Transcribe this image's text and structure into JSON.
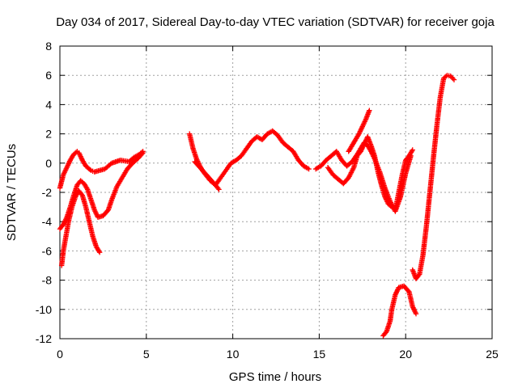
{
  "chart_data": {
    "type": "scatter",
    "title": "Day 034 of 2017, Sidereal Day-to-day VTEC variation (SDTVAR) for receiver goja",
    "xlabel": "GPS time / hours",
    "ylabel": "SDTVAR / TECUs",
    "xlim": [
      0,
      25
    ],
    "ylim": [
      -12,
      8
    ],
    "xticks": [
      0,
      5,
      10,
      15,
      20,
      25
    ],
    "yticks": [
      -12,
      -10,
      -8,
      -6,
      -4,
      -2,
      0,
      2,
      4,
      6,
      8
    ],
    "grid": true,
    "marker": "plus",
    "color": "#ff0000",
    "series": [
      {
        "x": [
          0.0,
          0.2,
          0.4,
          0.6,
          0.8,
          1.0,
          1.1,
          1.3,
          1.5,
          1.8,
          2.0,
          2.3,
          2.6,
          3.0,
          3.5,
          4.0,
          4.3,
          4.6,
          4.8
        ],
        "y": [
          -1.7,
          -0.8,
          -0.3,
          0.2,
          0.6,
          0.8,
          0.7,
          0.2,
          -0.2,
          -0.5,
          -0.6,
          -0.5,
          -0.4,
          0.0,
          0.2,
          0.1,
          0.4,
          0.6,
          0.8
        ]
      },
      {
        "x": [
          0.0,
          0.2,
          0.4,
          0.6,
          0.8,
          1.0,
          1.2,
          1.4,
          1.6,
          1.8,
          2.0,
          2.2,
          2.5,
          2.8,
          3.0,
          3.3,
          3.6,
          3.9,
          4.2,
          4.5,
          4.8
        ],
        "y": [
          -4.5,
          -4.2,
          -3.7,
          -3.0,
          -2.2,
          -1.5,
          -1.2,
          -1.4,
          -1.8,
          -2.5,
          -3.2,
          -3.7,
          -3.6,
          -3.2,
          -2.5,
          -1.6,
          -1.0,
          -0.4,
          0.0,
          0.3,
          0.7
        ]
      },
      {
        "x": [
          0.1,
          0.2,
          0.35,
          0.5,
          0.7,
          0.9,
          1.1,
          1.3,
          1.5,
          1.7,
          1.9,
          2.1,
          2.3
        ],
        "y": [
          -7.0,
          -6.0,
          -5.0,
          -4.0,
          -3.0,
          -2.3,
          -1.9,
          -2.2,
          -3.0,
          -4.0,
          -5.0,
          -5.7,
          -6.1
        ]
      },
      {
        "x": [
          7.5,
          7.7,
          7.9,
          8.1,
          8.3,
          8.5,
          8.7,
          9.0,
          9.3,
          9.6,
          9.9,
          10.2,
          10.5,
          10.8,
          11.1,
          11.4,
          11.7,
          12.0,
          12.3,
          12.6,
          12.9,
          13.2,
          13.5,
          13.8,
          14.1,
          14.4
        ],
        "y": [
          2.0,
          1.0,
          0.3,
          -0.2,
          -0.6,
          -0.9,
          -1.2,
          -1.5,
          -1.0,
          -0.5,
          0.0,
          0.2,
          0.5,
          1.0,
          1.5,
          1.8,
          1.6,
          2.0,
          2.2,
          1.9,
          1.4,
          1.1,
          0.8,
          0.2,
          -0.2,
          -0.4
        ]
      },
      {
        "x": [
          7.8,
          8.1,
          8.4,
          8.7,
          9.0,
          9.2
        ],
        "y": [
          0.1,
          -0.3,
          -0.7,
          -1.1,
          -1.5,
          -1.8
        ]
      },
      {
        "x": [
          14.8,
          15.1,
          15.4,
          15.7,
          16.0,
          16.3,
          16.6,
          16.9,
          17.2,
          17.4,
          17.6,
          17.8,
          18.0,
          18.2,
          18.5,
          18.8,
          19.1,
          19.4,
          19.7,
          20.0,
          20.3
        ],
        "y": [
          -0.4,
          -0.2,
          0.2,
          0.5,
          0.8,
          0.2,
          -0.2,
          0.1,
          0.6,
          1.0,
          1.4,
          1.2,
          0.8,
          0.3,
          -0.6,
          -1.7,
          -2.6,
          -3.3,
          -2.3,
          -0.7,
          0.5
        ]
      },
      {
        "x": [
          15.5,
          15.8,
          16.1,
          16.4,
          16.7,
          17.0,
          17.2,
          17.4,
          17.6,
          17.8,
          18.0,
          18.2,
          18.4,
          18.6,
          18.8,
          19.0,
          19.2,
          19.4,
          19.6,
          19.8,
          20.0,
          20.2,
          20.4
        ],
        "y": [
          -0.3,
          -0.8,
          -1.1,
          -1.4,
          -1.0,
          -0.3,
          0.5,
          0.8,
          1.3,
          1.8,
          1.2,
          0.5,
          -0.6,
          -1.5,
          -2.3,
          -2.8,
          -3.0,
          -3.2,
          -2.0,
          -0.8,
          0.2,
          0.5,
          0.9
        ]
      },
      {
        "x": [
          16.7,
          16.9,
          17.1,
          17.3,
          17.5,
          17.7,
          17.9
        ],
        "y": [
          0.8,
          1.2,
          1.6,
          2.0,
          2.5,
          3.0,
          3.6
        ]
      },
      {
        "x": [
          18.7,
          18.9,
          19.1,
          19.2,
          19.4,
          19.6,
          19.9,
          20.2,
          20.4,
          20.6
        ],
        "y": [
          -11.8,
          -11.5,
          -10.8,
          -10.0,
          -9.0,
          -8.5,
          -8.4,
          -8.8,
          -9.8,
          -10.3
        ]
      },
      {
        "x": [
          20.4,
          20.6,
          20.8,
          21.0,
          21.2,
          21.4,
          21.6,
          21.8,
          22.0,
          22.2,
          22.4,
          22.6,
          22.8
        ],
        "y": [
          -7.3,
          -7.9,
          -7.6,
          -6.3,
          -4.3,
          -2.0,
          0.3,
          2.5,
          4.5,
          5.8,
          6.0,
          5.95,
          5.7
        ]
      }
    ]
  }
}
